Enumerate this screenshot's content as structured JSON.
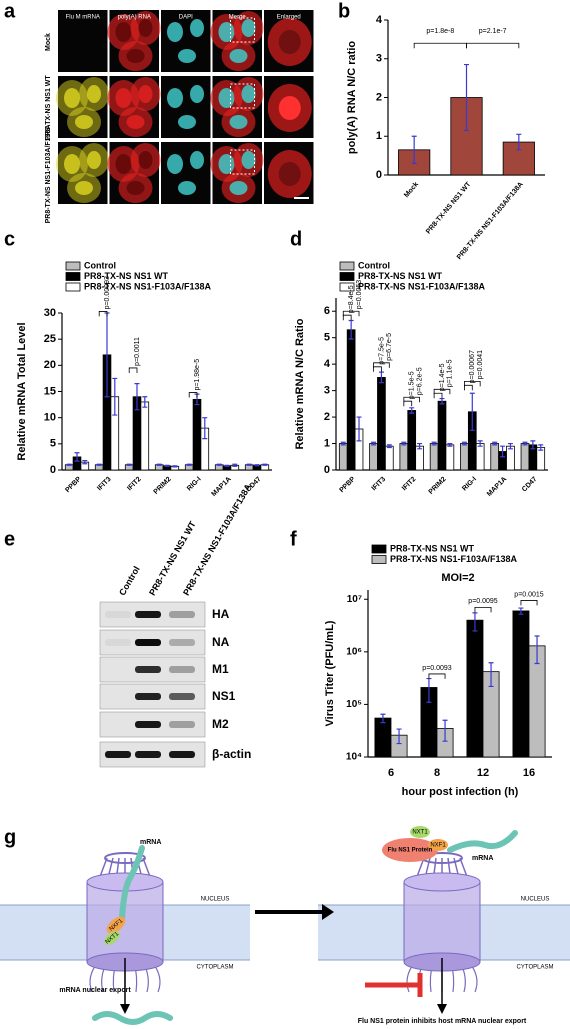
{
  "panel_a": {
    "panel": "a",
    "columns": [
      "Flu M mRNA",
      "poly(A) RNA",
      "DAPI",
      "Merge",
      "Enlarged"
    ],
    "rows": [
      "Mock",
      "PR8-TX-NS NS1 WT",
      "PR8-TX-NS NS1-F103A/F138A"
    ]
  },
  "chart_data": [
    {
      "type": "bar",
      "panel": "b",
      "ylabel": "poly(A) RNA N/C ratio",
      "categories": [
        "Mock",
        "PR8-TX-NS NS1 WT",
        "PR8-TX-NS NS1-F103A/F138A"
      ],
      "values": [
        0.65,
        2.0,
        0.85
      ],
      "errors": [
        0.35,
        0.85,
        0.2
      ],
      "color": "#a0463a",
      "error_color": "#3a3ad0",
      "ylim": [
        0,
        4
      ],
      "yticks": [
        0,
        1,
        2,
        3,
        4
      ],
      "annotations": [
        "p=1.8e-8",
        "p=2.1e-7"
      ]
    },
    {
      "type": "bar",
      "panel": "c",
      "ylabel": "Relative mRNA Total Level",
      "legend": "above",
      "categories": [
        "PPBP",
        "IFIT3",
        "IFIT2",
        "PRIM2",
        "RIG-I",
        "MAP1A",
        "CD47"
      ],
      "series": [
        {
          "name": "Control",
          "color": "#bdbdbd",
          "values": [
            1,
            1,
            1,
            1,
            1,
            1,
            1
          ],
          "errors": [
            0.1,
            0.1,
            0.1,
            0.1,
            0.1,
            0.1,
            0.1
          ]
        },
        {
          "name": "PR8-TX-NS NS1 WT",
          "color": "#000000",
          "values": [
            2.5,
            22,
            14,
            0.8,
            13.5,
            0.8,
            0.9
          ],
          "errors": [
            0.8,
            8,
            2.5,
            0.1,
            1,
            0.1,
            0.1
          ]
        },
        {
          "name": "PR8-TX-NS NS1-F103A/F138A",
          "color": "#ffffff",
          "values": [
            1.5,
            14,
            13,
            0.7,
            8,
            0.9,
            1.0
          ],
          "errors": [
            0.3,
            3.5,
            1,
            0.1,
            2,
            0.2,
            0.1
          ]
        }
      ],
      "error_color": "#3a3ad0",
      "ylim": [
        0,
        30
      ],
      "yticks": [
        0,
        5,
        10,
        15,
        20,
        25,
        30
      ],
      "annotations": [
        "p=0.00093",
        "p=0.0011",
        "p=1.98e-5"
      ]
    },
    {
      "type": "bar",
      "panel": "d",
      "ylabel": "Relative mRNA N/C Ratio",
      "legend": "above",
      "categories": [
        "PPBP",
        "IFIT3",
        "IFIT2",
        "PRIM2",
        "RIG-I",
        "MAP1A",
        "CD47"
      ],
      "series": [
        {
          "name": "Control",
          "color": "#bdbdbd",
          "values": [
            1,
            1,
            1,
            1,
            1,
            1,
            1
          ],
          "errors": [
            0.05,
            0.05,
            0.05,
            0.05,
            0.05,
            0.05,
            0.05
          ]
        },
        {
          "name": "PR8-TX-NS NS1 WT",
          "color": "#000000",
          "values": [
            5.3,
            3.5,
            2.25,
            2.6,
            2.2,
            0.7,
            0.95
          ],
          "errors": [
            0.35,
            0.2,
            0.1,
            0.1,
            0.7,
            0.2,
            0.15
          ]
        },
        {
          "name": "PR8-TX-NS NS1-F103A/F138A",
          "color": "#ffffff",
          "values": [
            1.55,
            0.9,
            0.9,
            0.95,
            1.0,
            0.9,
            0.85
          ],
          "errors": [
            0.45,
            0.05,
            0.1,
            0.05,
            0.1,
            0.1,
            0.1
          ]
        }
      ],
      "error_color": "#3a3ad0",
      "ylim": [
        0,
        6.5
      ],
      "yticks": [
        0,
        1,
        2,
        3,
        4,
        5,
        6
      ],
      "annotations": [
        "p=8.4e-5",
        "p=0.0053",
        "p=7.5e-5",
        "p=6.7e-5",
        "p=1.5e-5",
        "p=6.2e-5",
        "p=1.4e-5",
        "p=1.1e-5",
        "p=0.00067",
        "p=0.0041"
      ]
    },
    {
      "type": "bar",
      "panel": "f",
      "subtitle": "MOI=2",
      "ylabel": "Virus Titer (PFU/mL)",
      "xlabel": "hour post infection (h)",
      "legend": "above",
      "log": true,
      "categories": [
        "6",
        "8",
        "12",
        "16"
      ],
      "series": [
        {
          "name": "PR8-TX-NS NS1 WT",
          "color": "#000000",
          "values": [
            55000,
            210000,
            4000000,
            6000000
          ],
          "errors": [
            10000,
            100000,
            1500000,
            800000
          ]
        },
        {
          "name": "PR8-TX-NS NS1-F103A/F138A",
          "color": "#bdbdbd",
          "values": [
            26000,
            35000,
            420000,
            1300000
          ],
          "errors": [
            8000,
            15000,
            200000,
            700000
          ]
        }
      ],
      "error_color": "#3a3ad0",
      "ylim": [
        10000,
        15000000
      ],
      "yticks": [
        {
          "value": 10000,
          "label": "10⁴"
        },
        {
          "value": 100000,
          "label": "10⁵"
        },
        {
          "value": 1000000,
          "label": "10⁶"
        },
        {
          "value": 10000000,
          "label": "10⁷"
        }
      ],
      "annotations": [
        "p=0.0093",
        "p=0.0095",
        "p=0.0015"
      ]
    }
  ],
  "panel_e": {
    "panel": "e",
    "lanes": [
      "Control",
      "PR8-TX-NS NS1 WT",
      "PR8-TX-NS NS1-F103A/F138A"
    ],
    "proteins": [
      "HA",
      "NA",
      "M1",
      "NS1",
      "M2",
      "β-actin"
    ]
  },
  "panel_g": {
    "panel": "g",
    "left": {
      "mrna": "mRNA",
      "nxf1": "NXF1",
      "nxt1": "NXT1",
      "nucleus": "NUCLEUS",
      "cytoplasm": "CYTOPLASM",
      "caption": "mRNA nuclear export"
    },
    "right": {
      "ns1": "Flu NS1 Protein",
      "nxt1": "NXT1",
      "nxf1": "NXF1",
      "mrna": "mRNA",
      "nucleus": "NUCLEUS",
      "cytoplasm": "CYTOPLASM",
      "caption": "Flu NS1 protein inhibits host mRNA nuclear export"
    }
  }
}
